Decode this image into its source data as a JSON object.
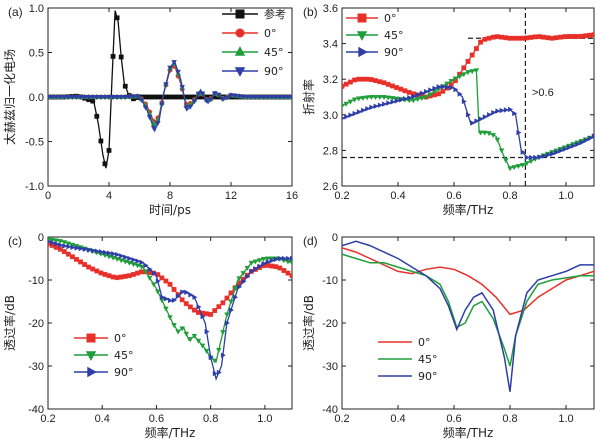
{
  "chart_data": [
    {
      "panel": "(a)",
      "type": "line",
      "xlabel": "时间/ps",
      "ylabel": "太赫兹归一化电场",
      "xlim": [
        0,
        16
      ],
      "ylim": [
        -1.0,
        1.0
      ],
      "xticks": [
        "0",
        "4",
        "8",
        "12",
        "16"
      ],
      "yticks": [
        "-1.0",
        "-0.5",
        "0.0",
        "0.5",
        "1.0"
      ],
      "legend_position": "top-right",
      "series": [
        {
          "name": "参考",
          "color": "#111111",
          "marker": "square",
          "x": [
            0,
            1,
            2,
            3,
            3.3,
            3.6,
            3.8,
            4.0,
            4.2,
            4.4,
            4.6,
            4.8,
            5.0,
            5.3,
            5.6,
            6.0,
            7,
            8,
            10,
            12,
            16
          ],
          "y": [
            0,
            0,
            0.01,
            -0.05,
            -0.3,
            -0.65,
            -0.8,
            -0.6,
            0.2,
            0.97,
            0.85,
            0.45,
            0.15,
            0.02,
            -0.02,
            0.0,
            0,
            0,
            0,
            0,
            0
          ]
        },
        {
          "name": "0°",
          "color": "#e8302a",
          "marker": "circle",
          "x": [
            0,
            4,
            5,
            6,
            6.5,
            7.0,
            7.3,
            7.6,
            8.0,
            8.3,
            8.7,
            9.1,
            9.5,
            10,
            10.5,
            11,
            11.5,
            12,
            13,
            14,
            16
          ],
          "y": [
            0,
            0,
            0,
            0.01,
            -0.1,
            -0.3,
            -0.2,
            0.05,
            0.3,
            0.35,
            0.15,
            -0.1,
            -0.05,
            0.06,
            -0.05,
            0.05,
            -0.02,
            0.02,
            0,
            0,
            0
          ]
        },
        {
          "name": "45°",
          "color": "#1f9e3a",
          "marker": "triangle-up",
          "x": [
            0,
            4,
            5,
            6,
            6.5,
            7.0,
            7.3,
            7.6,
            8.0,
            8.3,
            8.7,
            9.1,
            9.5,
            10,
            10.5,
            11,
            11.5,
            12,
            13,
            14,
            16
          ],
          "y": [
            0,
            0,
            0,
            0.01,
            -0.12,
            -0.33,
            -0.22,
            0.05,
            0.32,
            0.38,
            0.18,
            -0.12,
            -0.06,
            0.07,
            -0.06,
            0.05,
            -0.02,
            0.02,
            0,
            0,
            0
          ]
        },
        {
          "name": "90°",
          "color": "#2e3ea8",
          "marker": "triangle-down",
          "x": [
            0,
            4,
            5,
            6,
            6.5,
            7.0,
            7.3,
            7.6,
            8.0,
            8.3,
            8.7,
            9.1,
            9.5,
            10,
            10.5,
            11,
            11.5,
            12,
            13,
            14,
            16
          ],
          "y": [
            0,
            0,
            0,
            0.01,
            -0.15,
            -0.38,
            -0.25,
            0.05,
            0.33,
            0.4,
            0.2,
            -0.15,
            -0.08,
            0.08,
            -0.07,
            0.06,
            -0.03,
            0.02,
            0,
            0,
            0
          ]
        }
      ]
    },
    {
      "panel": "(b)",
      "type": "line",
      "xlabel": "频率/THz",
      "ylabel": "折射率",
      "xlim": [
        0.2,
        1.1
      ],
      "ylim": [
        2.6,
        3.6
      ],
      "xticks": [
        "0.2",
        "0.4",
        "0.6",
        "0.8",
        "1.0"
      ],
      "yticks": [
        "2.6",
        "2.8",
        "3.0",
        "3.2",
        "3.4",
        "3.6"
      ],
      "legend_position": "top-left",
      "annotation": ">0.6",
      "series": [
        {
          "name": "0°",
          "color": "#e8302a",
          "marker": "square",
          "x": [
            0.2,
            0.25,
            0.3,
            0.35,
            0.4,
            0.45,
            0.5,
            0.55,
            0.6,
            0.65,
            0.7,
            0.75,
            0.8,
            0.85,
            0.9,
            0.95,
            1.0,
            1.05,
            1.1
          ],
          "y": [
            3.16,
            3.2,
            3.2,
            3.18,
            3.15,
            3.12,
            3.1,
            3.12,
            3.18,
            3.3,
            3.42,
            3.44,
            3.43,
            3.43,
            3.44,
            3.43,
            3.44,
            3.44,
            3.45
          ]
        },
        {
          "name": "45°",
          "color": "#1f9e3a",
          "marker": "triangle-down",
          "x": [
            0.2,
            0.25,
            0.3,
            0.35,
            0.4,
            0.45,
            0.5,
            0.55,
            0.6,
            0.65,
            0.68,
            0.69,
            0.72,
            0.75,
            0.78,
            0.8,
            0.85,
            0.9,
            0.95,
            1.0,
            1.05,
            1.1
          ],
          "y": [
            3.05,
            3.09,
            3.1,
            3.1,
            3.09,
            3.08,
            3.1,
            3.15,
            3.2,
            3.24,
            3.25,
            2.9,
            2.9,
            2.88,
            2.76,
            2.7,
            2.72,
            2.76,
            2.79,
            2.82,
            2.85,
            2.88
          ]
        },
        {
          "name": "90°",
          "color": "#2e3ea8",
          "marker": "triangle-right",
          "x": [
            0.2,
            0.25,
            0.3,
            0.35,
            0.4,
            0.45,
            0.5,
            0.55,
            0.6,
            0.63,
            0.66,
            0.7,
            0.75,
            0.8,
            0.82,
            0.84,
            0.86,
            0.9,
            0.95,
            1.0,
            1.05,
            1.1
          ],
          "y": [
            2.98,
            3.01,
            3.04,
            3.06,
            3.08,
            3.1,
            3.13,
            3.16,
            3.15,
            3.1,
            2.95,
            2.98,
            3.02,
            3.03,
            3.0,
            2.8,
            2.76,
            2.76,
            2.78,
            2.81,
            2.84,
            2.88
          ]
        }
      ],
      "reference_lines": [
        {
          "orientation": "horizontal",
          "y": 3.43,
          "x_from": 0.65,
          "x_to": 1.1
        },
        {
          "orientation": "horizontal",
          "y": 2.76,
          "x_from": 0.2,
          "x_to": 1.1
        },
        {
          "orientation": "vertical",
          "x": 0.855,
          "y_from": 2.6,
          "y_to": 3.6
        }
      ]
    },
    {
      "panel": "(c)",
      "type": "line",
      "xlabel": "频率/THz",
      "ylabel": "透过率/dB",
      "xlim": [
        0.2,
        1.1
      ],
      "ylim": [
        -40,
        0
      ],
      "xticks": [
        "0.2",
        "0.4",
        "0.6",
        "0.8",
        "1.0"
      ],
      "yticks": [
        "0",
        "-10",
        "-20",
        "-30",
        "-40"
      ],
      "legend_position": "bottom-left",
      "series": [
        {
          "name": "0°",
          "color": "#e8302a",
          "marker": "square",
          "x": [
            0.2,
            0.25,
            0.3,
            0.35,
            0.4,
            0.45,
            0.5,
            0.55,
            0.6,
            0.65,
            0.7,
            0.75,
            0.8,
            0.85,
            0.9,
            0.95,
            1.0,
            1.05,
            1.1
          ],
          "y": [
            -1.5,
            -3,
            -5,
            -7,
            -8.5,
            -9.5,
            -9,
            -8,
            -8.5,
            -11,
            -15,
            -17.5,
            -18,
            -15,
            -11,
            -8,
            -6.5,
            -7,
            -9
          ]
        },
        {
          "name": "45°",
          "color": "#1f9e3a",
          "marker": "triangle-down",
          "x": [
            0.2,
            0.25,
            0.3,
            0.35,
            0.4,
            0.45,
            0.5,
            0.55,
            0.6,
            0.63,
            0.66,
            0.68,
            0.7,
            0.72,
            0.74,
            0.78,
            0.8,
            0.82,
            0.86,
            0.9,
            0.95,
            1.0,
            1.05,
            1.1
          ],
          "y": [
            -0.5,
            -1,
            -2,
            -3,
            -4,
            -5,
            -6,
            -7,
            -12,
            -16,
            -20,
            -22,
            -21,
            -24,
            -23,
            -26,
            -28,
            -29,
            -18,
            -10,
            -6,
            -5,
            -5,
            -6
          ]
        },
        {
          "name": "90°",
          "color": "#2e3ea8",
          "marker": "triangle-right",
          "x": [
            0.2,
            0.25,
            0.3,
            0.35,
            0.4,
            0.45,
            0.5,
            0.55,
            0.6,
            0.62,
            0.66,
            0.7,
            0.74,
            0.78,
            0.8,
            0.82,
            0.84,
            0.86,
            0.9,
            0.95,
            1.0,
            1.05,
            1.1
          ],
          "y": [
            -1,
            -2,
            -2.5,
            -3,
            -3.5,
            -4,
            -5,
            -6,
            -9,
            -14,
            -15,
            -12.5,
            -14,
            -20,
            -28,
            -33,
            -30,
            -20,
            -12,
            -8,
            -6,
            -5,
            -5
          ]
        }
      ]
    },
    {
      "panel": "(d)",
      "type": "line",
      "xlabel": "频率/THz",
      "ylabel": "透过率/dB",
      "xlim": [
        0.2,
        1.1
      ],
      "ylim": [
        -40,
        0
      ],
      "xticks": [
        "0.2",
        "0.4",
        "0.6",
        "0.8",
        "1.0"
      ],
      "yticks": [
        "0",
        "-10",
        "-20",
        "-30",
        "-40"
      ],
      "legend_position": "bottom-center",
      "series": [
        {
          "name": "0°",
          "color": "#e8302a",
          "x": [
            0.2,
            0.25,
            0.3,
            0.35,
            0.4,
            0.45,
            0.5,
            0.55,
            0.6,
            0.65,
            0.7,
            0.75,
            0.8,
            0.85,
            0.9,
            0.95,
            1.0,
            1.05,
            1.1
          ],
          "y": [
            -2.5,
            -3.5,
            -5,
            -6.5,
            -8,
            -8.5,
            -7.5,
            -7,
            -7.5,
            -9,
            -11,
            -14,
            -18,
            -17,
            -14,
            -12,
            -10,
            -9,
            -8
          ]
        },
        {
          "name": "45°",
          "color": "#1f9e3a",
          "x": [
            0.2,
            0.25,
            0.3,
            0.35,
            0.4,
            0.45,
            0.5,
            0.55,
            0.58,
            0.61,
            0.64,
            0.67,
            0.7,
            0.74,
            0.78,
            0.8,
            0.82,
            0.86,
            0.9,
            0.95,
            1.0,
            1.05,
            1.1
          ],
          "y": [
            -4,
            -5,
            -6,
            -6,
            -7,
            -8,
            -9,
            -11,
            -15,
            -21,
            -20,
            -16,
            -15,
            -19,
            -26,
            -30,
            -23,
            -15,
            -11,
            -10,
            -9.5,
            -9,
            -9
          ]
        },
        {
          "name": "90°",
          "color": "#2e3ea8",
          "x": [
            0.2,
            0.25,
            0.3,
            0.35,
            0.4,
            0.45,
            0.5,
            0.55,
            0.58,
            0.61,
            0.64,
            0.67,
            0.7,
            0.74,
            0.78,
            0.8,
            0.82,
            0.86,
            0.9,
            0.95,
            1.0,
            1.05,
            1.1
          ],
          "y": [
            -2,
            -1,
            -2,
            -3.5,
            -5,
            -7,
            -9,
            -12,
            -16,
            -21.5,
            -17,
            -14,
            -13,
            -17,
            -28,
            -36,
            -23,
            -13,
            -10,
            -9,
            -8,
            -6.5,
            -6.5
          ]
        }
      ]
    }
  ]
}
